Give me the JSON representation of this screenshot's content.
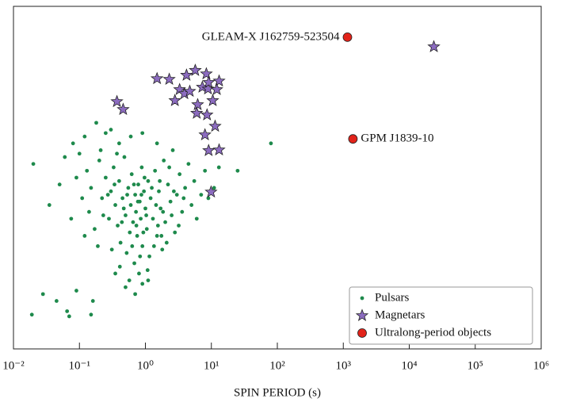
{
  "chart_data": {
    "type": "scatter",
    "xlabel": "SPIN PERIOD (s)",
    "xscale": "log",
    "xlim": [
      0.01,
      1000000
    ],
    "xticks": [
      {
        "value": 0.01,
        "label": "10⁻²"
      },
      {
        "value": 0.1,
        "label": "10⁻¹"
      },
      {
        "value": 1,
        "label": "10⁰"
      },
      {
        "value": 10,
        "label": "10¹"
      },
      {
        "value": 100,
        "label": "10²"
      },
      {
        "value": 1000,
        "label": "10³"
      },
      {
        "value": 10000,
        "label": "10⁴"
      },
      {
        "value": 100000,
        "label": "10⁵"
      },
      {
        "value": 1000000,
        "label": "10⁶"
      }
    ],
    "ylim": [
      0,
      100
    ],
    "legend": "lower right",
    "series": [
      {
        "name": "Pulsars",
        "color": "#1e8a4c",
        "marker": "dot",
        "x": [
          0.02,
          0.019,
          0.028,
          0.045,
          0.065,
          0.07,
          0.16,
          0.15,
          0.09,
          0.035,
          0.05,
          0.06,
          0.08,
          0.1,
          0.12,
          0.18,
          0.25,
          0.3,
          0.13,
          0.15,
          0.2,
          0.22,
          0.25,
          0.28,
          0.3,
          0.33,
          0.35,
          0.38,
          0.4,
          0.42,
          0.45,
          0.48,
          0.5,
          0.52,
          0.55,
          0.58,
          0.6,
          0.62,
          0.65,
          0.68,
          0.7,
          0.72,
          0.75,
          0.78,
          0.8,
          0.82,
          0.85,
          0.88,
          0.9,
          0.95,
          1.0,
          1.05,
          1.1,
          1.15,
          1.2,
          1.3,
          1.4,
          1.5,
          1.6,
          1.7,
          1.8,
          1.9,
          2.0,
          2.2,
          2.4,
          2.6,
          2.8,
          3.0,
          3.3,
          3.6,
          4.0,
          4.5,
          5.0,
          5.5,
          6.0,
          7.0,
          8.0,
          9.0,
          11,
          13,
          25,
          80,
          0.14,
          0.17,
          0.19,
          0.21,
          0.23,
          0.27,
          0.31,
          0.34,
          0.37,
          0.41,
          0.44,
          0.47,
          0.53,
          0.57,
          0.63,
          0.67,
          0.73,
          0.77,
          0.83,
          0.87,
          0.93,
          0.97,
          1.03,
          1.08,
          1.25,
          1.35,
          1.45,
          1.55,
          1.65,
          1.75,
          1.85,
          2.1,
          2.3,
          2.5,
          2.7,
          3.2,
          3.8,
          0.5,
          0.7,
          0.9,
          1.1,
          0.35,
          0.6,
          0.9,
          0.4,
          1.5,
          0.11,
          0.12,
          0.075,
          0.09
        ],
        "values": [
          54,
          10,
          16,
          14,
          11,
          9.5,
          14,
          10,
          17,
          42,
          48,
          56,
          60,
          57,
          62,
          66,
          63,
          64,
          52,
          47,
          55,
          44,
          50,
          38,
          46,
          53,
          42,
          36,
          49,
          31,
          44,
          56,
          39,
          28,
          47,
          34,
          42,
          51,
          37,
          25,
          45,
          40,
          33,
          48,
          22,
          43,
          38,
          53,
          30,
          46,
          41,
          35,
          49,
          27,
          44,
          38,
          52,
          33,
          46,
          41,
          29,
          55,
          37,
          48,
          43,
          58,
          34,
          45,
          51,
          40,
          47,
          54,
          42,
          49,
          38,
          45,
          52,
          44,
          47,
          53,
          52,
          60,
          40,
          35,
          30,
          58,
          39,
          45,
          29,
          48,
          57,
          24,
          37,
          41,
          45,
          20,
          30,
          48,
          36,
          43,
          27,
          45,
          34,
          50,
          39,
          23,
          47,
          30,
          42,
          36,
          49,
          33,
          40,
          31,
          53,
          39,
          46,
          36,
          44,
          18,
          16,
          19,
          20,
          22,
          62,
          63,
          60,
          60,
          44,
          33,
          38,
          50
        ]
      },
      {
        "name": "Magnetars",
        "color": "#8c6cc0",
        "marker": "star",
        "x": [
          1.5,
          2.3,
          5.7,
          4.2,
          8.4,
          13.1,
          3.3,
          3.9,
          4.7,
          7.3,
          8.9,
          12.1,
          2.8,
          6.2,
          10.5,
          6.0,
          8.6,
          11.4,
          8.0,
          9.1,
          13.1,
          9.9,
          0.37,
          0.46,
          9.1,
          23600
        ],
        "values": [
          78.9,
          78.7,
          81.3,
          79.9,
          80.3,
          78.2,
          75.7,
          74.5,
          75.2,
          76.4,
          75.9,
          75.7,
          72.5,
          71.3,
          72.5,
          68.8,
          68.3,
          65.0,
          62.5,
          57.9,
          58.1,
          45.8,
          72.2,
          69.9,
          77.8,
          88.2
        ]
      },
      {
        "name": "Ultralong-period objects",
        "color": "#e2231a",
        "marker": "circle",
        "x": [
          1156,
          1400
        ],
        "values": [
          91.0,
          61.3
        ]
      }
    ],
    "annotations": [
      "GLEAM-X J162759-523504",
      "GPM J1839-10"
    ]
  }
}
